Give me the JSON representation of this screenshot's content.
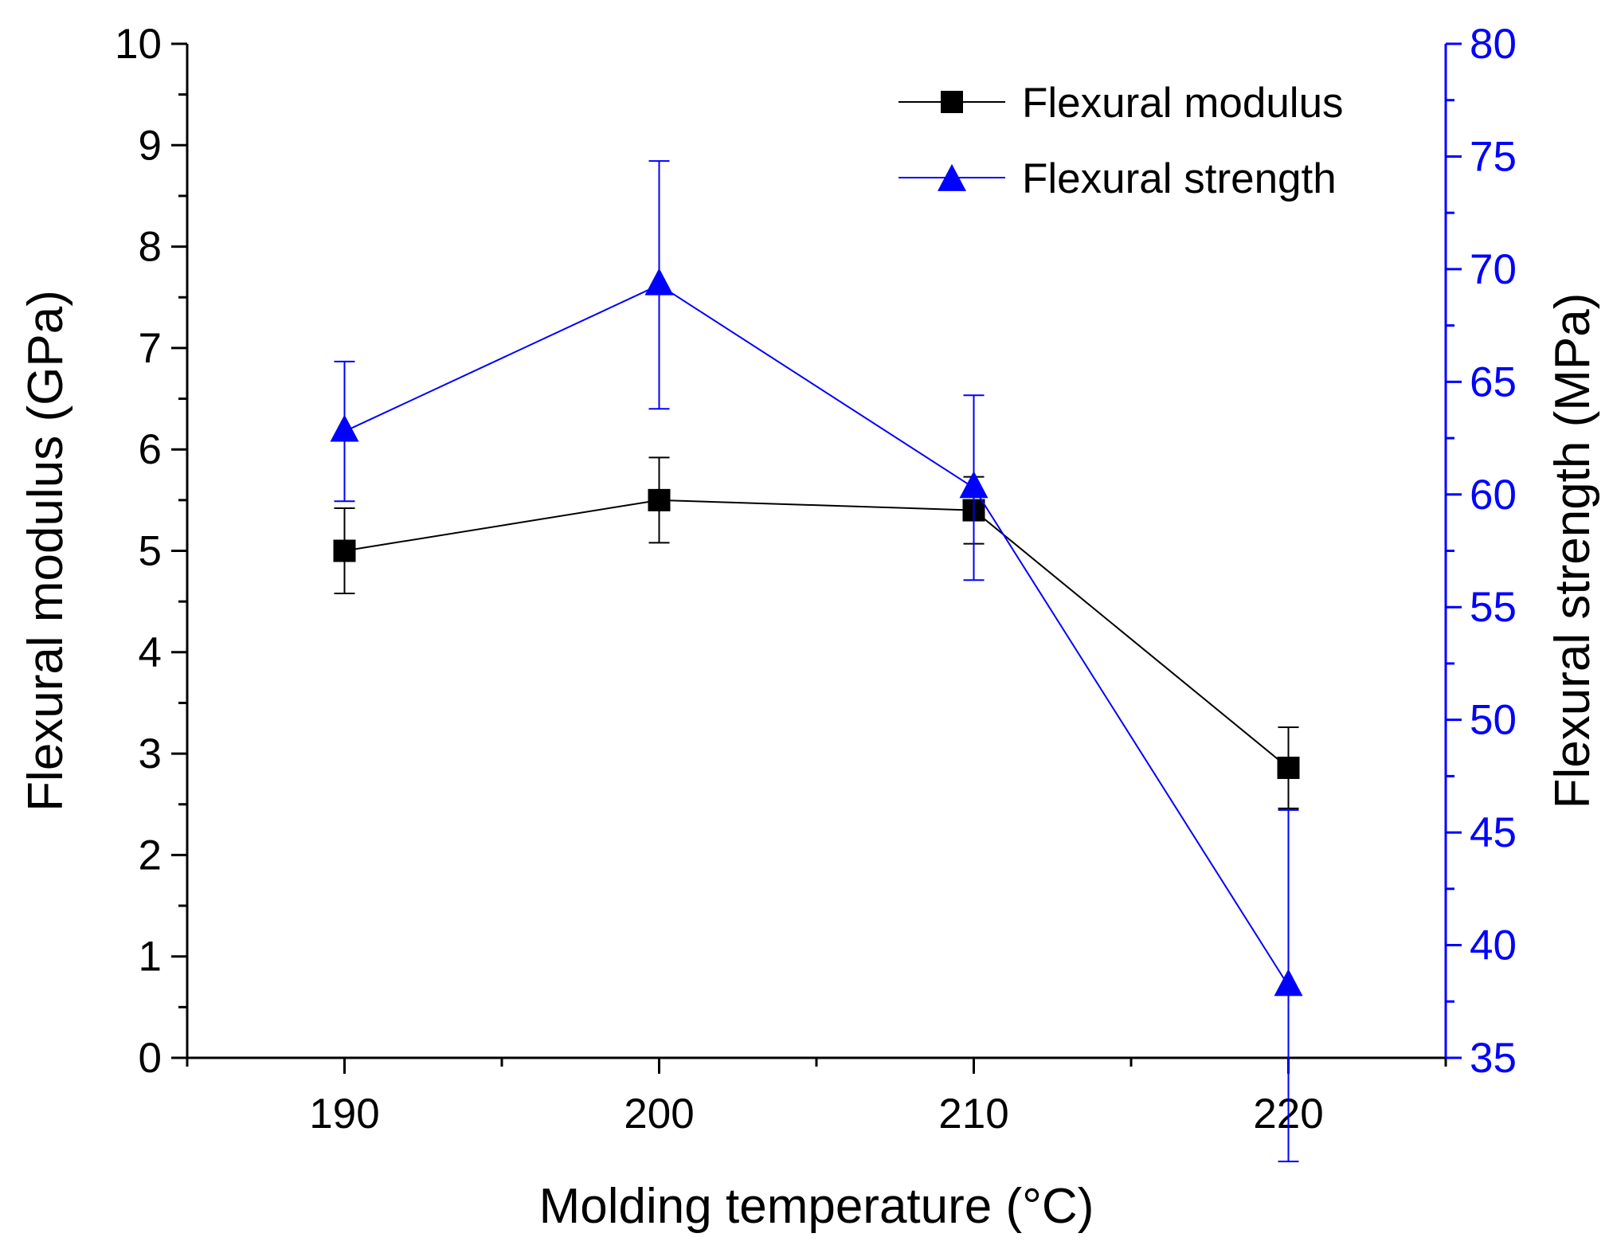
{
  "chart_data": {
    "type": "line",
    "x_axis": {
      "label": "Molding temperature (°C)",
      "range": [
        185,
        225
      ],
      "ticks": [
        190,
        200,
        210,
        220
      ],
      "minor_ticks": [
        185,
        195,
        205,
        215,
        225
      ]
    },
    "y_left": {
      "label": "Flexural modulus (GPa)",
      "range": [
        0,
        10
      ],
      "ticks": [
        0,
        1,
        2,
        3,
        4,
        5,
        6,
        7,
        8,
        9,
        10
      ],
      "color": "#000000"
    },
    "y_right": {
      "label": "Flexural strength (MPa)",
      "range": [
        35,
        80
      ],
      "ticks": [
        35,
        40,
        45,
        50,
        55,
        60,
        65,
        70,
        75,
        80
      ],
      "color": "#0000ff"
    },
    "series": [
      {
        "name": "Flexural modulus",
        "axis": "left",
        "marker": "square",
        "color": "#000000",
        "x": [
          190,
          200,
          210,
          220
        ],
        "y": [
          5.0,
          5.5,
          5.4,
          2.86
        ],
        "error": [
          0.42,
          0.42,
          0.33,
          0.4
        ]
      },
      {
        "name": "Flexural strength",
        "axis": "right",
        "marker": "triangle",
        "color": "#0000ff",
        "x": [
          190,
          200,
          210,
          220
        ],
        "y": [
          62.8,
          69.3,
          60.3,
          38.2
        ],
        "error": [
          3.1,
          5.5,
          4.1,
          7.8
        ]
      }
    ],
    "legend_position": "top-right",
    "grid": false
  }
}
